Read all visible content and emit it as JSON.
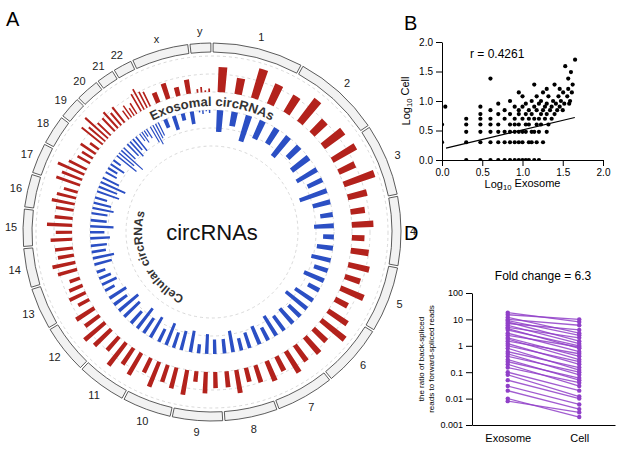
{
  "chart_data": [
    {
      "type": "circos",
      "panel": "A",
      "title": "circRNAs",
      "categories": [
        "1",
        "2",
        "3",
        "4",
        "5",
        "6",
        "7",
        "8",
        "9",
        "10",
        "11",
        "12",
        "13",
        "14",
        "15",
        "16",
        "17",
        "18",
        "19",
        "20",
        "21",
        "22",
        "x",
        "y"
      ],
      "sizes": [
        249,
        242,
        198,
        190,
        181,
        171,
        159,
        145,
        138,
        134,
        135,
        133,
        114,
        107,
        102,
        90,
        83,
        80,
        59,
        64,
        47,
        51,
        156,
        57
      ],
      "ylim": [
        0,
        1
      ],
      "series": [
        {
          "name": "Exosomal circRNAs",
          "color": "#b3221c",
          "values": [
            [
              0.7,
              0.45,
              0.85,
              0.6
            ],
            [
              0.55,
              0.8,
              0.5,
              0.7
            ],
            [
              0.75,
              0.5,
              0.9,
              0.55
            ],
            [
              0.4,
              0.6,
              0.35,
              0.5
            ],
            [
              0.6,
              0.45,
              0.7,
              0.4
            ],
            [
              0.65,
              0.85,
              0.5,
              0.6
            ],
            [
              0.55,
              0.7,
              0.45,
              0.6
            ],
            [
              0.5,
              0.4,
              0.65,
              0.45
            ],
            [
              0.45,
              0.6,
              0.3,
              0.7
            ],
            [
              0.6,
              0.5,
              0.75,
              0.45
            ],
            [
              0.7,
              0.55,
              0.8,
              0.5
            ],
            [
              0.65,
              0.75,
              0.5,
              0.6
            ],
            [
              0.35,
              0.5,
              0.4,
              0.3
            ],
            [
              0.55,
              0.65,
              0.45,
              0.5
            ],
            [
              0.6,
              0.45,
              0.7,
              0.5
            ],
            [
              0.5,
              0.65,
              0.55,
              0.4
            ],
            [
              0.7,
              0.6,
              0.8,
              0.55
            ],
            [
              0.4,
              0.35,
              0.5,
              0.3
            ],
            [
              0.75,
              0.6,
              0.85,
              0.5
            ],
            [
              0.5,
              0.6,
              0.45,
              0.55
            ],
            [
              0.3,
              0.4,
              0.25,
              0.35
            ],
            [
              0.55,
              0.65,
              0.5,
              0.45
            ],
            [
              0.3,
              0.45,
              0.25,
              0.4
            ],
            [
              0.1,
              0.15,
              0.05,
              0.1
            ]
          ]
        },
        {
          "name": "Cellular circRNAs",
          "color": "#2b4fc4",
          "values": [
            [
              0.6,
              0.4,
              0.75,
              0.55
            ],
            [
              0.5,
              0.7,
              0.45,
              0.6
            ],
            [
              0.65,
              0.45,
              0.8,
              0.5
            ],
            [
              0.35,
              0.55,
              0.3,
              0.45
            ],
            [
              0.55,
              0.4,
              0.6,
              0.35
            ],
            [
              0.6,
              0.75,
              0.45,
              0.55
            ],
            [
              0.5,
              0.65,
              0.4,
              0.55
            ],
            [
              0.45,
              0.35,
              0.6,
              0.4
            ],
            [
              0.4,
              0.55,
              0.25,
              0.6
            ],
            [
              0.55,
              0.45,
              0.65,
              0.4
            ],
            [
              0.65,
              0.5,
              0.7,
              0.45
            ],
            [
              0.6,
              0.7,
              0.45,
              0.55
            ],
            [
              0.3,
              0.45,
              0.35,
              0.25
            ],
            [
              0.5,
              0.6,
              0.4,
              0.45
            ],
            [
              0.55,
              0.4,
              0.65,
              0.45
            ],
            [
              0.45,
              0.6,
              0.5,
              0.35
            ],
            [
              0.65,
              0.55,
              0.75,
              0.5
            ],
            [
              0.35,
              0.3,
              0.45,
              0.25
            ],
            [
              0.7,
              0.55,
              0.8,
              0.45
            ],
            [
              0.45,
              0.55,
              0.4,
              0.5
            ],
            [
              0.25,
              0.35,
              0.2,
              0.3
            ],
            [
              0.5,
              0.6,
              0.45,
              0.4
            ],
            [
              0.25,
              0.4,
              0.2,
              0.35
            ],
            [
              0.05,
              0.1,
              0.03,
              0.08
            ]
          ]
        }
      ]
    },
    {
      "type": "scatter",
      "panel": "B",
      "annotation": "r = 0.4261",
      "x_label": "Log10 Exosome",
      "y_label": "Log10 Cell",
      "color": "#000000",
      "xlim": [
        0,
        2
      ],
      "ylim": [
        0,
        2
      ],
      "xticks": [
        {
          "value": 0,
          "label": "0.0"
        },
        {
          "value": 0.5,
          "label": "0.5"
        },
        {
          "value": 1,
          "label": "1.0"
        },
        {
          "value": 1.5,
          "label": "1.5"
        },
        {
          "value": 2,
          "label": "2.0"
        }
      ],
      "yticks": [
        {
          "value": 0,
          "label": "0.0"
        },
        {
          "value": 0.5,
          "label": "0.5"
        },
        {
          "value": 1,
          "label": "1.0"
        },
        {
          "value": 1.5,
          "label": "1.5"
        },
        {
          "value": 2,
          "label": "2.0"
        }
      ],
      "x": [
        0.301,
        0.477,
        0.602,
        0.699,
        0.778,
        0.845,
        0.903,
        0.954,
        1.0,
        1.041,
        1.079,
        1.146,
        1.204,
        0,
        0.301,
        0.477,
        0.602,
        0.699,
        0.778,
        0.845,
        0.903,
        0.954,
        1.0,
        1.079,
        1.114,
        1.176,
        1.255,
        0.301,
        0.477,
        0.602,
        0.699,
        0.778,
        0.845,
        0.903,
        0.954,
        1.0,
        1.041,
        1.114,
        1.146,
        1.204,
        1.301,
        0,
        0.301,
        0.477,
        0.602,
        0.699,
        0.845,
        0.903,
        0.954,
        1.041,
        1.079,
        1.176,
        1.23,
        1.322,
        0.301,
        0.477,
        0.602,
        0.778,
        0.903,
        1.0,
        1.079,
        1.146,
        1.204,
        1.279,
        1.362,
        0.477,
        0.699,
        0.845,
        0.954,
        1.041,
        1.114,
        1.23,
        1.301,
        1.398,
        0.602,
        0.778,
        0.954,
        1.079,
        1.176,
        1.255,
        1.342,
        1.431,
        1.5,
        0.041,
        0.477,
        0.903,
        1.0,
        1.146,
        1.279,
        1.362,
        1.462,
        0.699,
        1.041,
        1.204,
        1.301,
        1.415,
        1.519,
        1.58,
        0.845,
        1.114,
        1.23,
        1.38,
        1.477,
        1.591,
        1.0,
        1.176,
        1.322,
        1.447,
        1.556,
        0.954,
        1.255,
        1.505,
        1.613,
        1.301,
        1.462,
        1.568,
        1.146,
        1.398,
        1.623,
        0.602,
        1.568,
        1.602,
        1.531,
        1.653
      ],
      "values": [
        0,
        0,
        0,
        0,
        0,
        0,
        0,
        0,
        0,
        0,
        0,
        0,
        0,
        0.301,
        0.301,
        0.301,
        0.301,
        0.301,
        0.301,
        0.301,
        0.301,
        0.301,
        0.301,
        0.301,
        0.301,
        0.301,
        0.301,
        0.477,
        0.477,
        0.477,
        0.477,
        0.477,
        0.477,
        0.477,
        0.477,
        0.477,
        0.477,
        0.477,
        0.477,
        0.477,
        0.477,
        0.602,
        0.602,
        0.602,
        0.602,
        0.602,
        0.602,
        0.602,
        0.602,
        0.602,
        0.602,
        0.602,
        0.602,
        0.602,
        0.699,
        0.699,
        0.699,
        0.699,
        0.699,
        0.699,
        0.699,
        0.699,
        0.699,
        0.699,
        0.699,
        0.778,
        0.778,
        0.778,
        0.778,
        0.778,
        0.778,
        0.778,
        0.778,
        0.778,
        0.845,
        0.845,
        0.845,
        0.845,
        0.845,
        0.845,
        0.845,
        0.845,
        0.845,
        0.903,
        0.903,
        0.903,
        0.903,
        0.903,
        0.903,
        0.903,
        0.903,
        0.954,
        0.954,
        0.954,
        0.954,
        0.954,
        0.954,
        0.954,
        1.0,
        1.0,
        1.0,
        1.0,
        1.0,
        1.0,
        1.079,
        1.079,
        1.079,
        1.079,
        1.079,
        1.146,
        1.146,
        1.146,
        1.146,
        1.204,
        1.204,
        1.204,
        1.279,
        1.279,
        1.279,
        1.38,
        1.38,
        1.491,
        1.59,
        1.7
      ],
      "fit": {
        "x": [
          0.05,
          1.65
        ],
        "y": [
          0.2,
          0.72
        ]
      }
    },
    {
      "type": "line",
      "panel": "D",
      "title": "Fold change = 6.3",
      "y_label": [
        "the ratio of back-spliced",
        "reads to forward-spliced reads"
      ],
      "log": "y",
      "color": "#9040c8",
      "marker": "circle",
      "categories": [
        "Exosome",
        "Cell"
      ],
      "ylim": [
        0.001,
        100
      ],
      "yticks": [
        0.001,
        0.01,
        0.1,
        1,
        10,
        100
      ],
      "series": [
        {
          "values": [
            18,
            8
          ]
        },
        {
          "values": [
            15,
            10
          ]
        },
        {
          "values": [
            12,
            3
          ]
        },
        {
          "values": [
            10,
            6
          ]
        },
        {
          "values": [
            9,
            2.5
          ]
        },
        {
          "values": [
            8,
            1.5
          ]
        },
        {
          "values": [
            7,
            4
          ]
        },
        {
          "values": [
            6,
            1.2
          ]
        },
        {
          "values": [
            5,
            2
          ]
        },
        {
          "values": [
            4.5,
            0.8
          ]
        },
        {
          "values": [
            4,
            1
          ]
        },
        {
          "values": [
            3,
            0.6
          ]
        },
        {
          "values": [
            2.5,
            0.9
          ]
        },
        {
          "values": [
            2,
            0.4
          ]
        },
        {
          "values": [
            1.8,
            0.3
          ]
        },
        {
          "values": [
            1.5,
            0.5
          ]
        },
        {
          "values": [
            1.2,
            0.2
          ]
        },
        {
          "values": [
            1,
            0.25
          ]
        },
        {
          "values": [
            0.8,
            0.12
          ]
        },
        {
          "values": [
            0.6,
            0.15
          ]
        },
        {
          "values": [
            0.5,
            0.08
          ]
        },
        {
          "values": [
            0.4,
            0.1
          ]
        },
        {
          "values": [
            0.3,
            0.05
          ]
        },
        {
          "values": [
            0.25,
            0.06
          ]
        },
        {
          "values": [
            0.2,
            0.03
          ]
        },
        {
          "values": [
            0.15,
            0.04
          ]
        },
        {
          "values": [
            0.1,
            0.02
          ]
        },
        {
          "values": [
            0.08,
            0.012
          ]
        },
        {
          "values": [
            0.05,
            0.01
          ]
        },
        {
          "values": [
            0.03,
            0.006
          ]
        },
        {
          "values": [
            0.02,
            0.004
          ]
        },
        {
          "values": [
            0.01,
            0.002
          ]
        },
        {
          "values": [
            0.008,
            0.003
          ]
        }
      ]
    }
  ]
}
